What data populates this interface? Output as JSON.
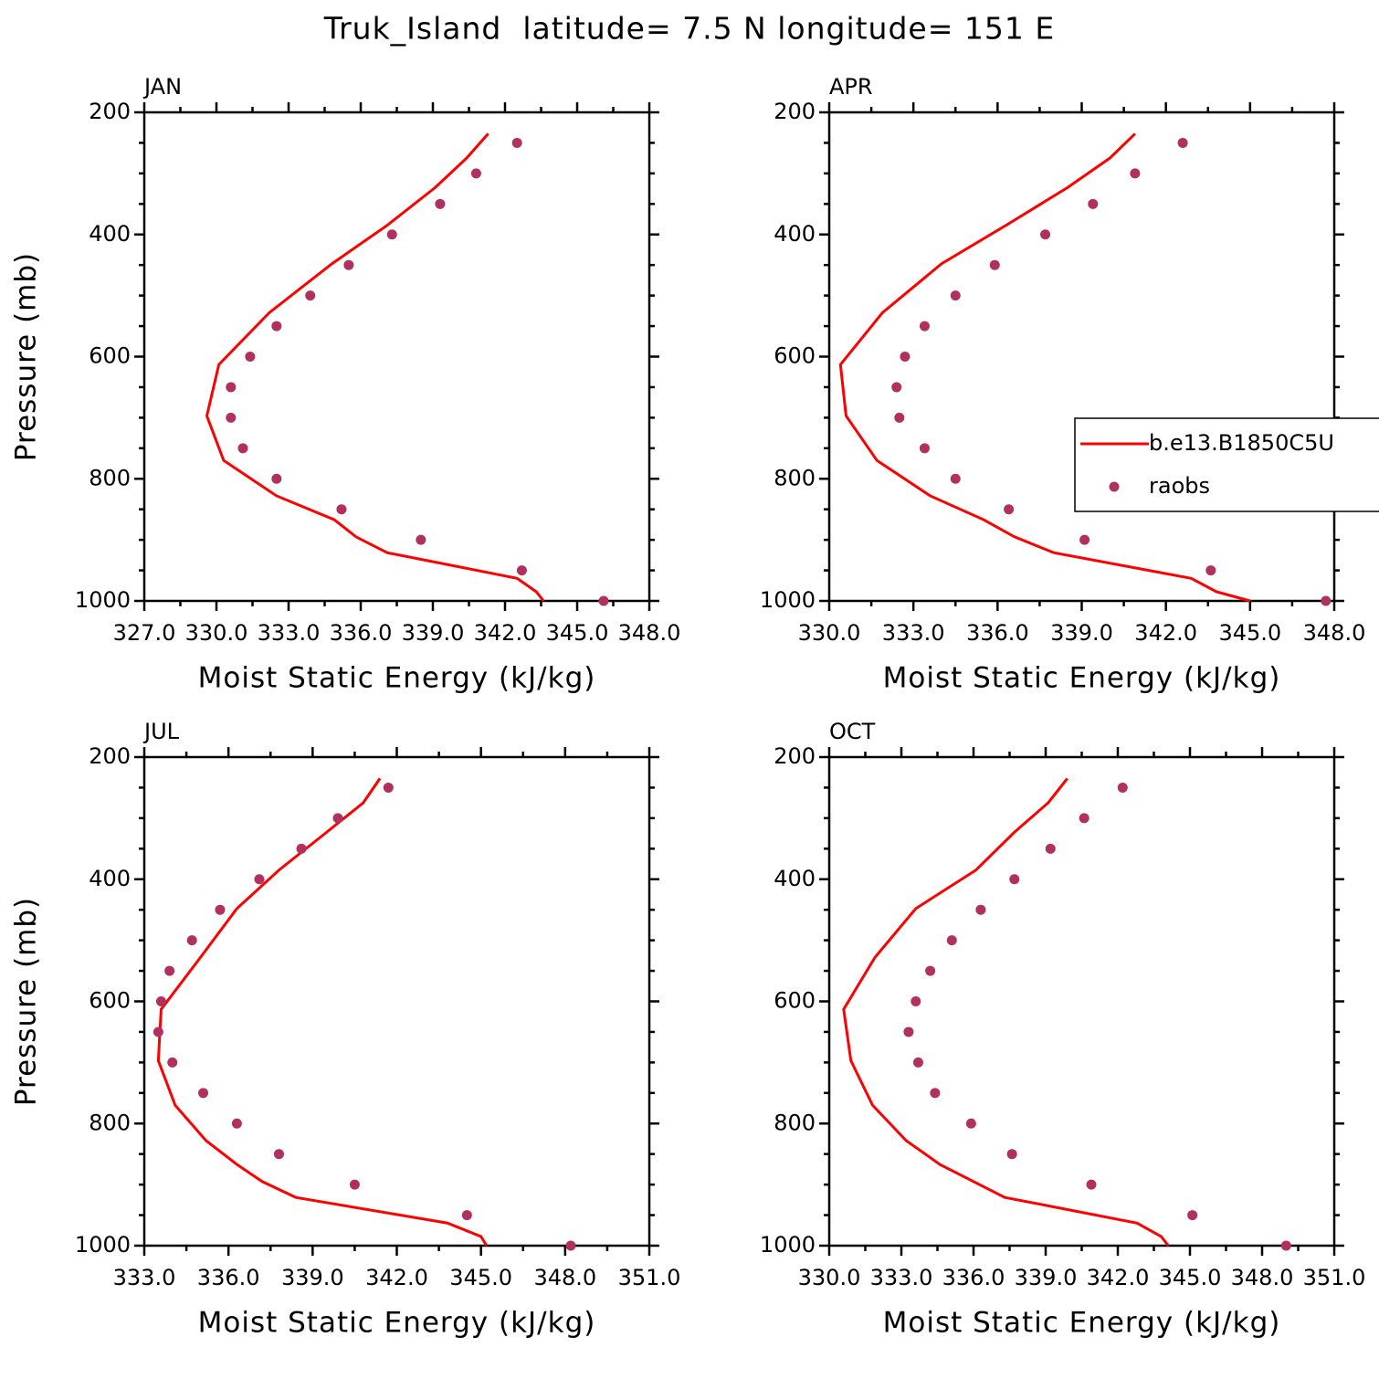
{
  "title": "Truk_Island  latitude= 7.5 N longitude= 151 E",
  "chart_data": [
    {
      "type": "profile",
      "title": "JAN",
      "xlabel": "Moist Static Energy (kJ/kg)",
      "ylabel": "Pressure (mb)",
      "xlim": [
        327,
        348
      ],
      "xticks": [
        {
          "value": 327,
          "label": "327.0"
        },
        {
          "value": 330,
          "label": "330.0"
        },
        {
          "value": 333,
          "label": "333.0"
        },
        {
          "value": 336,
          "label": "336.0"
        },
        {
          "value": 339,
          "label": "339.0"
        },
        {
          "value": 342,
          "label": "342.0"
        },
        {
          "value": 345,
          "label": "345.0"
        },
        {
          "value": 348,
          "label": "348.0"
        }
      ],
      "ylim": [
        200,
        1000
      ],
      "yreverse": true,
      "yticks": [
        200,
        400,
        600,
        800,
        1000
      ],
      "series": [
        {
          "mode": "line",
          "color": "#ff0000",
          "x": [
            341.3,
            340.4,
            339.1,
            337.1,
            334.8,
            332.2,
            330.1,
            329.6,
            330.3,
            332.5,
            334.9,
            335.8,
            337.1,
            342.5,
            343.3,
            343.6
          ],
          "y": [
            235,
            275,
            323,
            385,
            448,
            528,
            613,
            697,
            770,
            828,
            867,
            895,
            921,
            963,
            985,
            1000
          ]
        },
        {
          "mode": "marker",
          "color": "#b03060",
          "x": [
            342.5,
            340.8,
            339.3,
            337.3,
            335.5,
            333.9,
            332.5,
            331.4,
            330.6,
            330.6,
            331.1,
            332.5,
            335.2,
            338.5,
            342.7,
            346.1
          ],
          "y": [
            250,
            300,
            350,
            400,
            450,
            500,
            550,
            600,
            650,
            700,
            750,
            800,
            850,
            900,
            950,
            1000
          ]
        }
      ]
    },
    {
      "type": "profile",
      "title": "APR",
      "xlabel": "Moist Static Energy (kJ/kg)",
      "xlim": [
        330,
        348
      ],
      "xticks": [
        {
          "value": 330,
          "label": "330.0"
        },
        {
          "value": 333,
          "label": "333.0"
        },
        {
          "value": 336,
          "label": "336.0"
        },
        {
          "value": 339,
          "label": "339.0"
        },
        {
          "value": 342,
          "label": "342.0"
        },
        {
          "value": 345,
          "label": "345.0"
        },
        {
          "value": 348,
          "label": "348.0"
        }
      ],
      "ylim": [
        200,
        1000
      ],
      "yreverse": true,
      "yticks": [
        200,
        400,
        600,
        800,
        1000
      ],
      "legend": "right",
      "series": [
        {
          "name": "b.e13.B1850C5U",
          "mode": "line",
          "color": "#ff0000",
          "x": [
            340.9,
            340.0,
            338.5,
            336.3,
            334.0,
            331.9,
            330.4,
            330.6,
            331.7,
            333.6,
            335.5,
            336.6,
            338.0,
            342.9,
            343.8,
            345.0
          ],
          "y": [
            235,
            275,
            323,
            385,
            448,
            528,
            613,
            697,
            770,
            828,
            867,
            895,
            921,
            963,
            985,
            1000
          ]
        },
        {
          "name": "raobs",
          "mode": "marker",
          "color": "#b03060",
          "x": [
            342.6,
            340.9,
            339.4,
            337.7,
            335.9,
            334.5,
            333.4,
            332.7,
            332.4,
            332.5,
            333.4,
            334.5,
            336.4,
            339.1,
            343.6,
            347.7
          ],
          "y": [
            250,
            300,
            350,
            400,
            450,
            500,
            550,
            600,
            650,
            700,
            750,
            800,
            850,
            900,
            950,
            1000
          ]
        }
      ]
    },
    {
      "type": "profile",
      "title": "JUL",
      "xlabel": "Moist Static Energy (kJ/kg)",
      "ylabel": "Pressure (mb)",
      "xlim": [
        333,
        351
      ],
      "xticks": [
        {
          "value": 333,
          "label": "333.0"
        },
        {
          "value": 336,
          "label": "336.0"
        },
        {
          "value": 339,
          "label": "339.0"
        },
        {
          "value": 342,
          "label": "342.0"
        },
        {
          "value": 345,
          "label": "345.0"
        },
        {
          "value": 348,
          "label": "348.0"
        },
        {
          "value": 351,
          "label": "351.0"
        }
      ],
      "ylim": [
        200,
        1000
      ],
      "yreverse": true,
      "yticks": [
        200,
        400,
        600,
        800,
        1000
      ],
      "series": [
        {
          "mode": "line",
          "color": "#ff0000",
          "x": [
            341.4,
            340.8,
            339.5,
            337.8,
            336.3,
            335.0,
            333.6,
            333.5,
            334.1,
            335.2,
            336.3,
            337.2,
            338.4,
            343.8,
            345.0,
            345.2
          ],
          "y": [
            235,
            275,
            323,
            385,
            448,
            528,
            613,
            697,
            770,
            828,
            867,
            895,
            921,
            963,
            985,
            1000
          ]
        },
        {
          "mode": "marker",
          "color": "#b03060",
          "x": [
            341.7,
            339.9,
            338.6,
            337.1,
            335.7,
            334.7,
            333.9,
            333.6,
            333.5,
            334.0,
            335.1,
            336.3,
            337.8,
            340.5,
            344.5,
            348.2
          ],
          "y": [
            250,
            300,
            350,
            400,
            450,
            500,
            550,
            600,
            650,
            700,
            750,
            800,
            850,
            900,
            950,
            1000
          ]
        }
      ]
    },
    {
      "type": "profile",
      "title": "OCT",
      "xlabel": "Moist Static Energy (kJ/kg)",
      "xlim": [
        330,
        351
      ],
      "xticks": [
        {
          "value": 330,
          "label": "330.0"
        },
        {
          "value": 333,
          "label": "333.0"
        },
        {
          "value": 336,
          "label": "336.0"
        },
        {
          "value": 339,
          "label": "339.0"
        },
        {
          "value": 342,
          "label": "342.0"
        },
        {
          "value": 345,
          "label": "345.0"
        },
        {
          "value": 348,
          "label": "348.0"
        },
        {
          "value": 351,
          "label": "351.0"
        }
      ],
      "ylim": [
        200,
        1000
      ],
      "yreverse": true,
      "yticks": [
        200,
        400,
        600,
        800,
        1000
      ],
      "series": [
        {
          "mode": "line",
          "color": "#ff0000",
          "x": [
            339.9,
            339.1,
            337.7,
            336.1,
            333.6,
            331.9,
            330.6,
            330.9,
            331.8,
            333.2,
            334.6,
            336.0,
            337.3,
            342.8,
            343.8,
            344.1
          ],
          "y": [
            235,
            275,
            323,
            385,
            448,
            528,
            613,
            697,
            770,
            828,
            867,
            895,
            921,
            963,
            985,
            1000
          ]
        },
        {
          "mode": "marker",
          "color": "#b03060",
          "x": [
            342.2,
            340.6,
            339.2,
            337.7,
            336.3,
            335.1,
            334.2,
            333.6,
            333.3,
            333.7,
            334.4,
            335.9,
            337.6,
            340.9,
            345.1,
            349.0
          ],
          "y": [
            250,
            300,
            350,
            400,
            450,
            500,
            550,
            600,
            650,
            700,
            750,
            800,
            850,
            900,
            950,
            1000
          ]
        }
      ]
    }
  ]
}
